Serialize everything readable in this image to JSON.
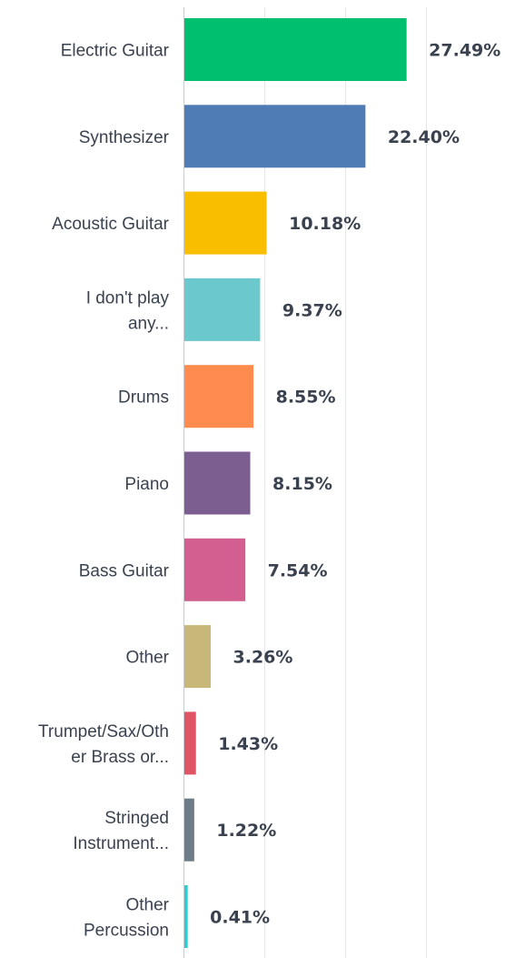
{
  "chart_data": {
    "type": "bar",
    "orientation": "horizontal",
    "unit": "%",
    "xlim": [
      0,
      100
    ],
    "grid": true,
    "categories": [
      "Electric Guitar",
      "Synthesizer",
      "Acoustic Guitar",
      "I don't play any...",
      "Drums",
      "Piano",
      "Bass Guitar",
      "Other",
      "Trumpet/Sax/Other Brass or...",
      "Stringed Instrument...",
      "Other Percussion"
    ],
    "category_lines": [
      [
        "Electric Guitar"
      ],
      [
        "Synthesizer"
      ],
      [
        "Acoustic Guitar"
      ],
      [
        "I don't play",
        "any..."
      ],
      [
        "Drums"
      ],
      [
        "Piano"
      ],
      [
        "Bass Guitar"
      ],
      [
        "Other"
      ],
      [
        "Trumpet/Sax/Oth",
        "er Brass or..."
      ],
      [
        "Stringed",
        "Instrument..."
      ],
      [
        "Other",
        "Percussion"
      ]
    ],
    "values": [
      27.49,
      22.4,
      10.18,
      9.37,
      8.55,
      8.15,
      7.54,
      3.26,
      1.43,
      1.22,
      0.41
    ],
    "value_labels": [
      "27.49%",
      "22.40%",
      "10.18%",
      "9.37%",
      "8.55%",
      "8.15%",
      "7.54%",
      "3.26%",
      "1.43%",
      "1.22%",
      "0.41%"
    ],
    "colors": [
      "#00bf6f",
      "#507cb6",
      "#f9be00",
      "#6bc8cd",
      "#ff8b4f",
      "#7d5e90",
      "#d25f90",
      "#c7b879",
      "#e05566",
      "#6e7c87",
      "#2dccd3"
    ]
  }
}
